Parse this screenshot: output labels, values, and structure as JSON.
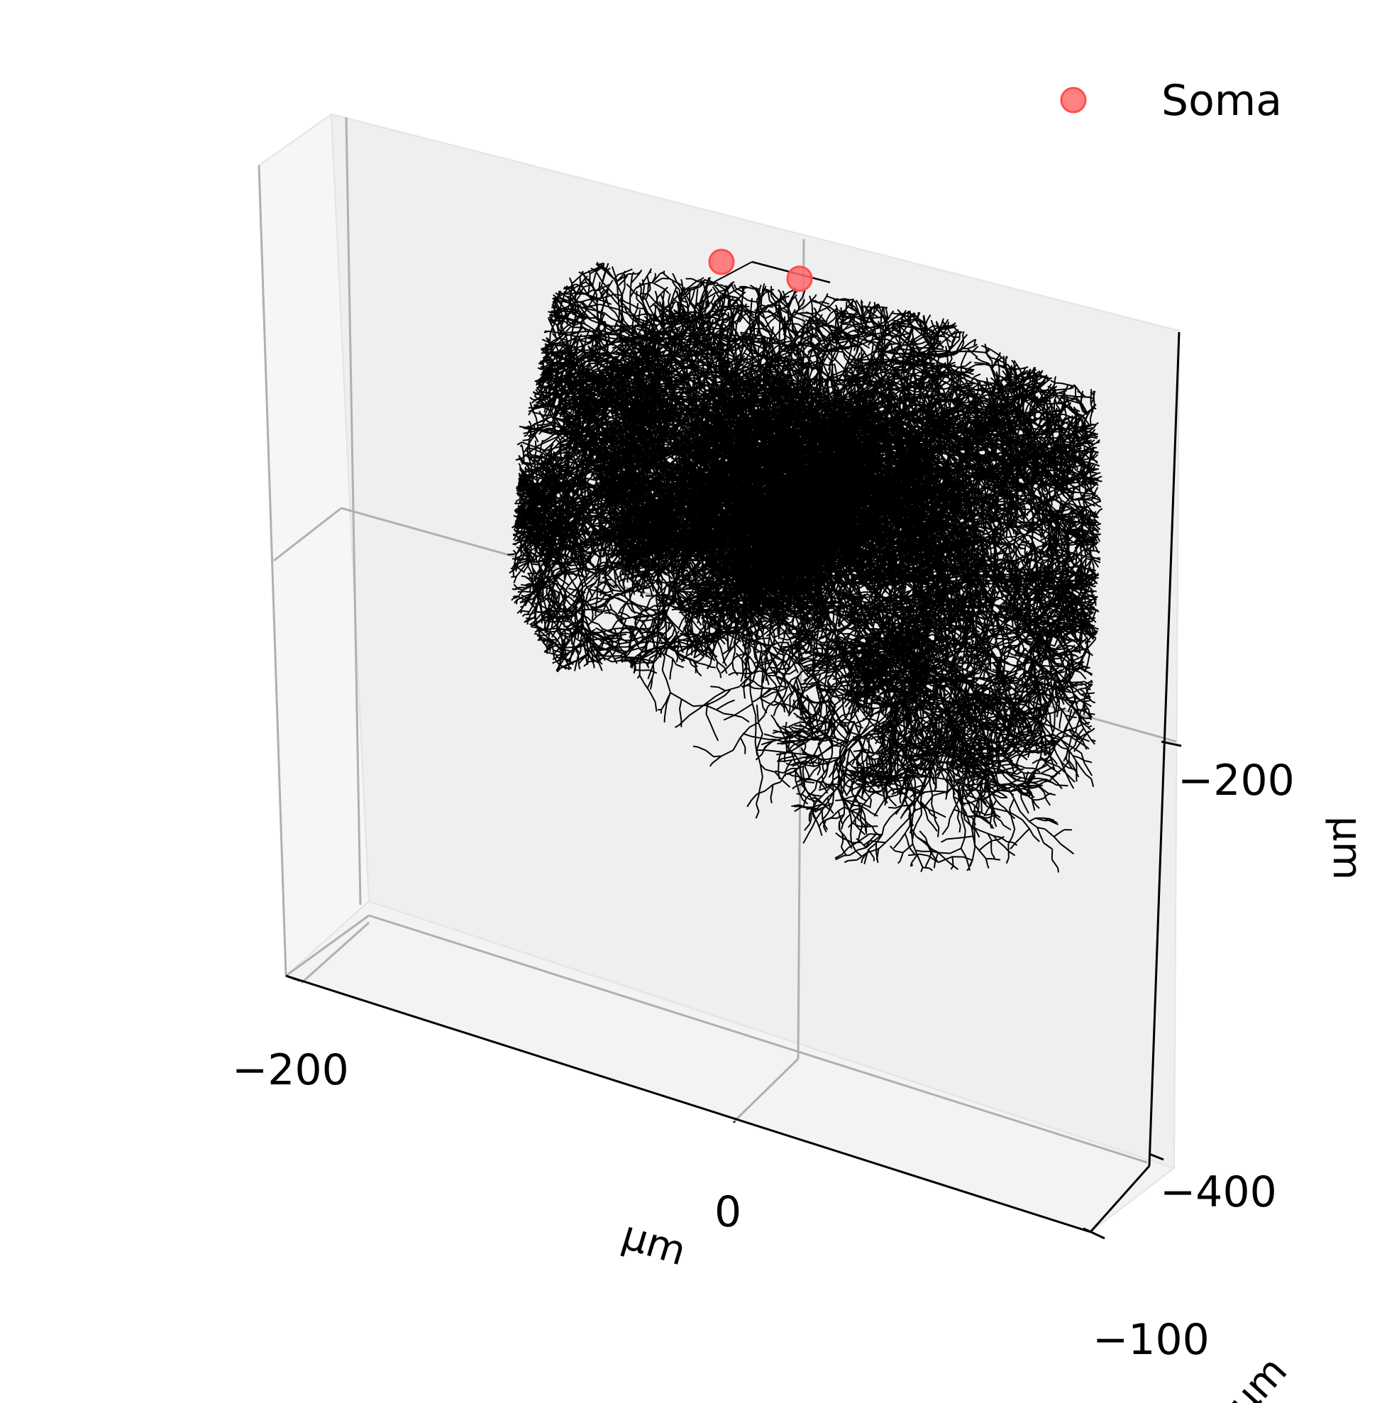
{
  "chart_data": {
    "type": "scatter",
    "projection": "3d",
    "legend": {
      "placement": "top-right",
      "entries": [
        "Soma"
      ]
    },
    "series": [
      {
        "name": "Soma",
        "color": "#ff6b6b",
        "points": [
          {
            "x": 10,
            "y": -120,
            "z": -10
          },
          {
            "x": 50,
            "y": -120,
            "z": -20
          }
        ]
      }
    ],
    "x_axis": {
      "label": "μm",
      "ticks": [
        "−200",
        "0"
      ],
      "tick_values": [
        -200,
        0
      ]
    },
    "y_axis": {
      "label": "μm",
      "ticks": [
        "−100"
      ],
      "tick_values": [
        -100
      ]
    },
    "z_axis": {
      "label": "μm",
      "ticks": [
        "−200",
        "−400"
      ],
      "tick_values": [
        -200,
        -400
      ]
    },
    "dendrite_color": "#000000",
    "pane_color": "#f0f0f0",
    "grid": true
  }
}
